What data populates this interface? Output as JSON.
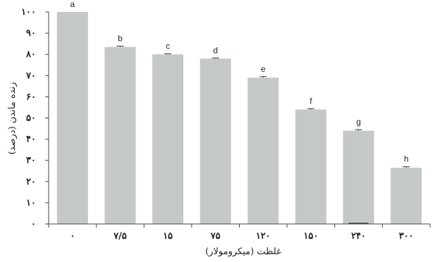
{
  "chart_data": {
    "type": "bar",
    "categories": [
      "۰",
      "۷/۵",
      "۱۵",
      "۷۵",
      "۱۲۰",
      "۱۵۰",
      "۲۴۰",
      "۳۰۰"
    ],
    "values": [
      100,
      83.5,
      80,
      78,
      69,
      54,
      44,
      26.5
    ],
    "errors": [
      0,
      0.4,
      0.3,
      0.3,
      0.5,
      0.4,
      0.5,
      0.5
    ],
    "significance": [
      "a",
      "b",
      "c",
      "d",
      "e",
      "f",
      "g",
      "h"
    ],
    "xlabel": "غلظت (میکرومولار)",
    "ylabel": "زنده ماندن (درصد)",
    "ylim": [
      0,
      100
    ],
    "yticks": [
      0,
      10,
      20,
      30,
      40,
      50,
      60,
      70,
      80,
      90,
      100
    ],
    "ytick_labels": [
      "۰",
      "۱۰",
      "۲۰",
      "۳۰",
      "۴۰",
      "۵۰",
      "۶۰",
      "۷۰",
      "۸۰",
      "۹۰",
      "۱۰۰"
    ],
    "bar_color": "#c4c8c6",
    "grid": false,
    "legend": "none"
  }
}
